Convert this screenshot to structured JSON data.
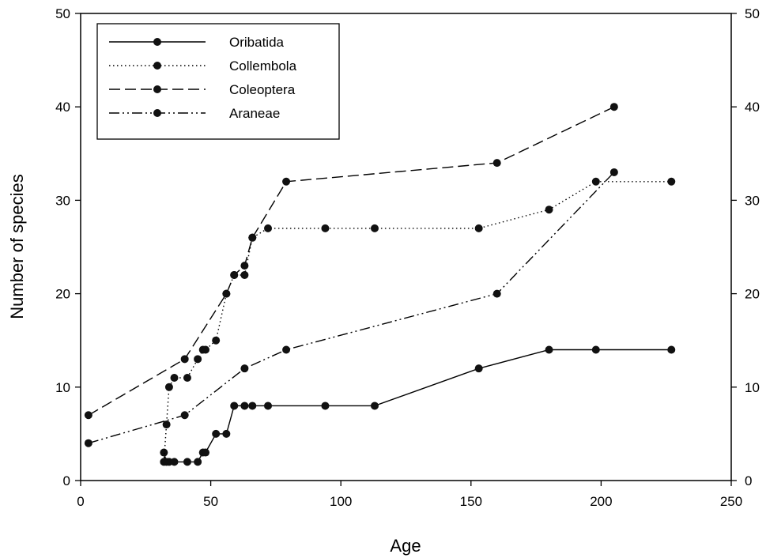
{
  "chart_data": {
    "type": "line",
    "title": "",
    "xlabel": "Age",
    "ylabel": "Number of species",
    "xlim": [
      0,
      250
    ],
    "ylim": [
      0,
      50
    ],
    "x_ticks": [
      "0",
      "50",
      "100",
      "150",
      "200",
      "250"
    ],
    "y_ticks": [
      "0",
      "10",
      "20",
      "30",
      "40",
      "50"
    ],
    "y2_ticks": [
      "0",
      "10",
      "20",
      "30",
      "40",
      "50"
    ],
    "grid": false,
    "legend_position": "top-left",
    "series": [
      {
        "name": "Oribatida",
        "style": "solid",
        "points": [
          [
            32,
            3
          ],
          [
            33,
            2
          ],
          [
            34,
            2
          ],
          [
            36,
            2
          ],
          [
            41,
            2
          ],
          [
            45,
            2
          ],
          [
            47,
            3
          ],
          [
            48,
            3
          ],
          [
            52,
            5
          ],
          [
            56,
            5
          ],
          [
            59,
            8
          ],
          [
            63,
            8
          ],
          [
            66,
            8
          ],
          [
            72,
            8
          ],
          [
            94,
            8
          ],
          [
            113,
            8
          ],
          [
            153,
            12
          ],
          [
            180,
            14
          ],
          [
            198,
            14
          ],
          [
            227,
            14
          ]
        ]
      },
      {
        "name": "Collembola",
        "style": "dotted",
        "points": [
          [
            32,
            2
          ],
          [
            33,
            6
          ],
          [
            34,
            10
          ],
          [
            36,
            11
          ],
          [
            41,
            11
          ],
          [
            45,
            13
          ],
          [
            47,
            14
          ],
          [
            48,
            14
          ],
          [
            52,
            15
          ],
          [
            56,
            20
          ],
          [
            59,
            22
          ],
          [
            63,
            22
          ],
          [
            66,
            26
          ],
          [
            72,
            27
          ],
          [
            94,
            27
          ],
          [
            113,
            27
          ],
          [
            153,
            27
          ],
          [
            180,
            29
          ],
          [
            198,
            32
          ],
          [
            227,
            32
          ]
        ]
      },
      {
        "name": "Coleoptera",
        "style": "dashed",
        "points": [
          [
            3,
            7
          ],
          [
            40,
            13
          ],
          [
            56,
            20
          ],
          [
            59,
            22
          ],
          [
            63,
            23
          ],
          [
            66,
            26
          ],
          [
            79,
            32
          ],
          [
            160,
            34
          ],
          [
            205,
            40
          ]
        ]
      },
      {
        "name": "Araneae",
        "style": "dash-dot-dot",
        "points": [
          [
            3,
            4
          ],
          [
            40,
            7
          ],
          [
            63,
            12
          ],
          [
            79,
            14
          ],
          [
            160,
            20
          ],
          [
            205,
            33
          ]
        ]
      }
    ]
  }
}
